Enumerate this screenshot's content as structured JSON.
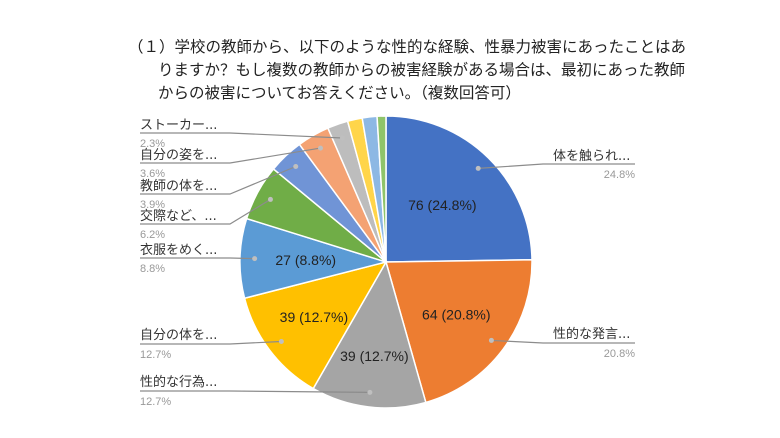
{
  "chart_data": {
    "type": "pie",
    "title": "（１）学校の教師から、以下のような性的な経験、性暴力被害にあったことはありますか？もし複数の教師からの被害経験がある場合は、最初にあった教師からの被害についてお答えください。（複数回答可）",
    "start": "top",
    "direction": "clockwise",
    "slices": [
      {
        "label": "体を触られ...",
        "value": 76,
        "percent": "24.8%",
        "data_label": "76 (24.8%)",
        "color": "#4472C4"
      },
      {
        "label": "性的な発言...",
        "value": 64,
        "percent": "20.8%",
        "data_label": "64 (20.8%)",
        "color": "#ED7D31"
      },
      {
        "label": "性的な行為...",
        "value": 39,
        "percent": "12.7%",
        "data_label": "39 (12.7%)",
        "color": "#A5A5A5"
      },
      {
        "label": "自分の体を...",
        "value": 39,
        "percent": "12.7%",
        "data_label": "39 (12.7%)",
        "color": "#FFC000"
      },
      {
        "label": "衣服をめく...",
        "value": 27,
        "percent": "8.8%",
        "data_label": "27 (8.8%)",
        "color": "#5B9BD5"
      },
      {
        "label": "交際など、...",
        "value": 19,
        "percent": "6.2%",
        "data_label": "",
        "color": "#70AD47"
      },
      {
        "label": "教師の体を...",
        "value": 12,
        "percent": "3.9%",
        "data_label": "",
        "color": "#7094D6"
      },
      {
        "label": "自分の姿を...",
        "value": 11,
        "percent": "3.6%",
        "data_label": "",
        "color": "#F4A273"
      },
      {
        "label": "ストーカー...",
        "value": 7,
        "percent": "2.3%",
        "data_label": "",
        "color": "#BDBDBD"
      },
      {
        "label": "",
        "value": 5,
        "percent": "",
        "data_label": "",
        "color": "#FFD54A"
      },
      {
        "label": "",
        "value": 5,
        "percent": "",
        "data_label": "",
        "color": "#8DB8E4"
      },
      {
        "label": "",
        "value": 3,
        "percent": "",
        "data_label": "",
        "color": "#8FC46A"
      }
    ]
  }
}
